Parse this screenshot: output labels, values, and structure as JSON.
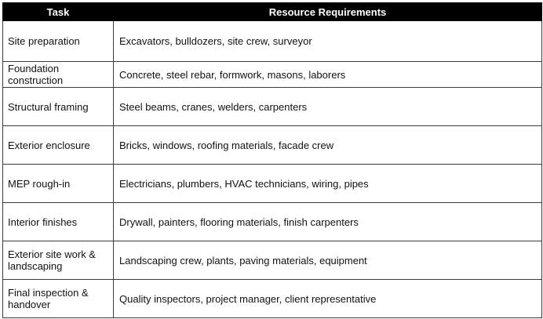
{
  "table": {
    "headers": [
      "Task",
      "Resource Requirements"
    ],
    "rows": [
      {
        "task": "Site preparation",
        "resources": "Excavators, bulldozers, site crew, surveyor"
      },
      {
        "task": "Foundation construction",
        "resources": "Concrete, steel rebar, formwork, masons, laborers"
      },
      {
        "task": "Structural framing",
        "resources": "Steel beams, cranes, welders, carpenters"
      },
      {
        "task": "Exterior enclosure",
        "resources": "Bricks, windows, roofing materials, facade crew"
      },
      {
        "task": "MEP rough-in",
        "resources": "Electricians, plumbers, HVAC technicians, wiring, pipes"
      },
      {
        "task": "Interior finishes",
        "resources": "Drywall, painters, flooring materials, finish carpenters"
      },
      {
        "task": "Exterior site work & landscaping",
        "resources": "Landscaping crew, plants, paving materials, equipment"
      },
      {
        "task": "Final inspection & handover",
        "resources": "Quality inspectors, project manager, client representative"
      }
    ]
  }
}
